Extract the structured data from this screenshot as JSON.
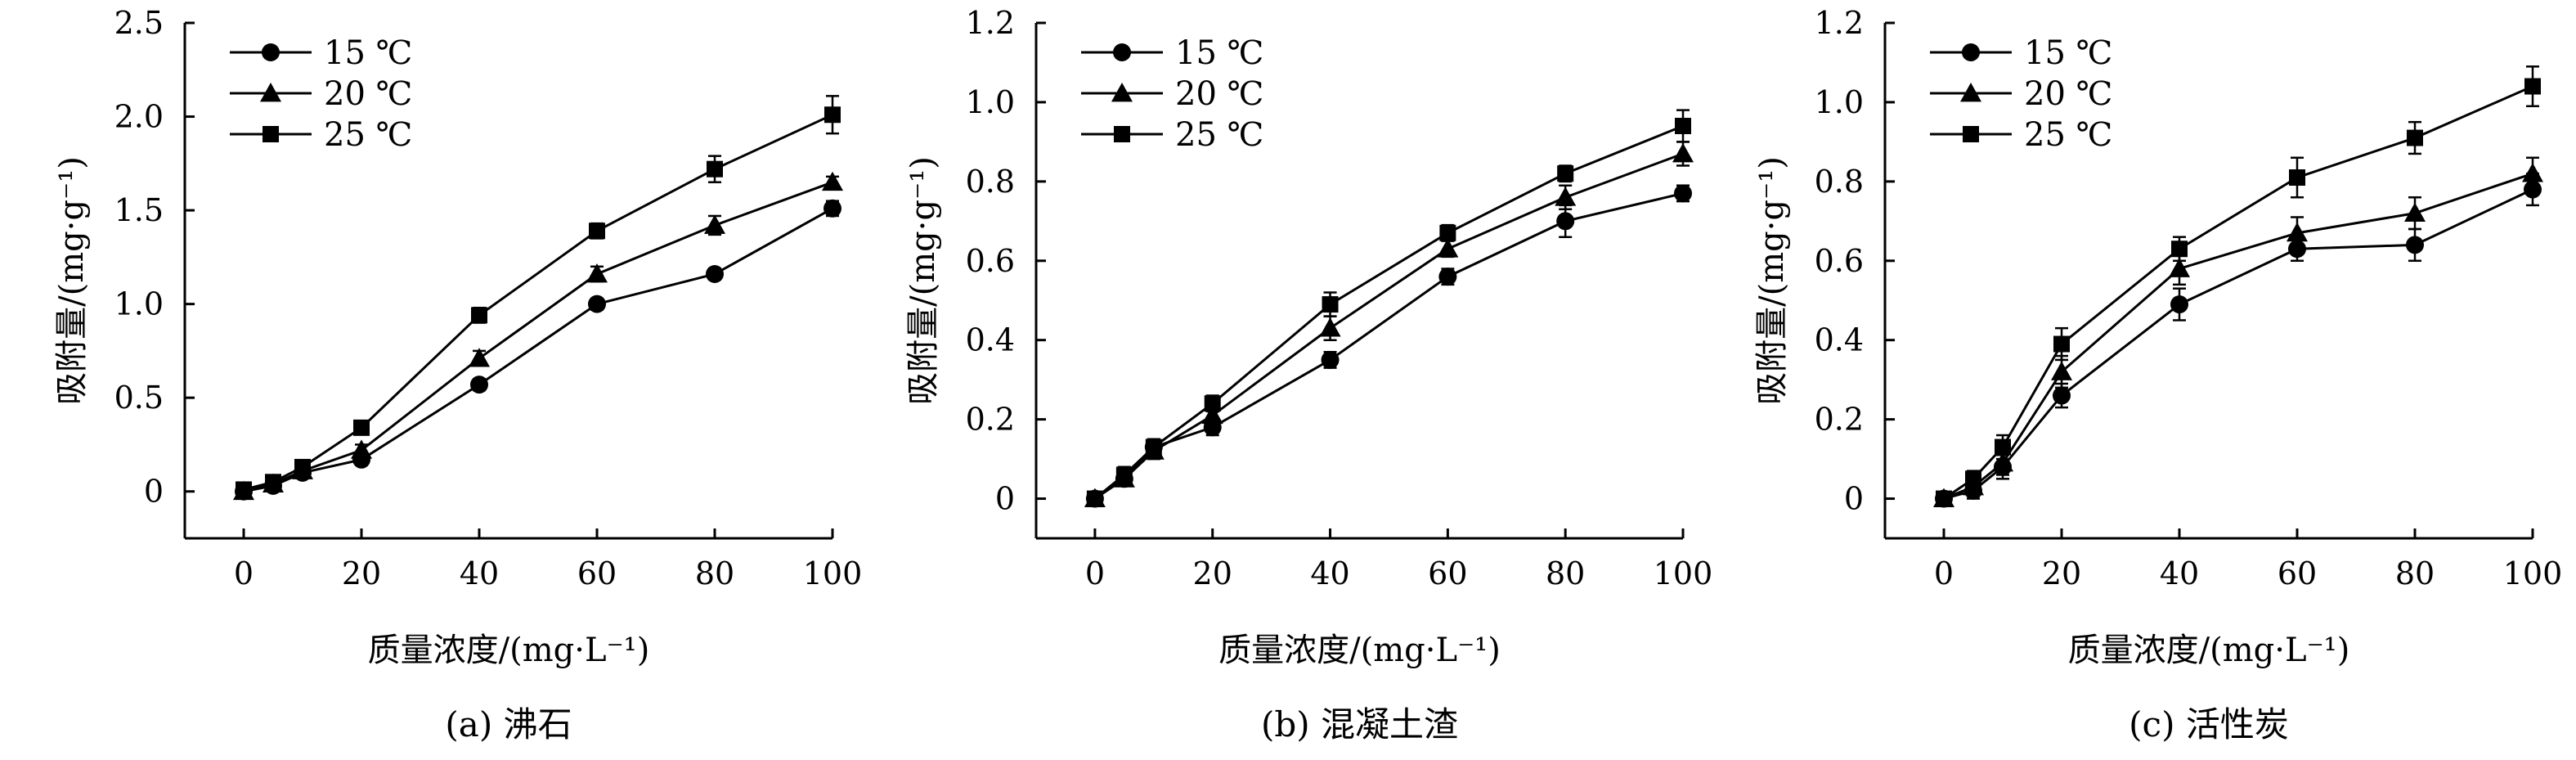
{
  "chart_data": [
    {
      "type": "line",
      "caption": "(a) 沸石",
      "xlabel": "质量浓度/(mg·L⁻¹)",
      "ylabel": "吸附量/(mg·g⁻¹)",
      "x": [
        0,
        5,
        10,
        20,
        40,
        60,
        80,
        100
      ],
      "xticks": [
        "0",
        "20",
        "40",
        "60",
        "80",
        "100"
      ],
      "yticks": [
        "0",
        "0.5",
        "1.0",
        "1.5",
        "2.0",
        "2.5"
      ],
      "xlim": [
        -10,
        100
      ],
      "ylim": [
        -0.25,
        2.5
      ],
      "legend_position": "top-left",
      "series": [
        {
          "name": "15 ℃",
          "marker": "circle",
          "values": [
            0,
            0.03,
            0.1,
            0.17,
            0.57,
            1.0,
            1.16,
            1.51
          ],
          "errors": [
            0.02,
            0.02,
            0.03,
            0.03,
            0.03,
            0.03,
            0.03,
            0.04
          ]
        },
        {
          "name": "20 ℃",
          "marker": "triangle",
          "values": [
            0,
            0.04,
            0.11,
            0.22,
            0.71,
            1.16,
            1.42,
            1.65
          ],
          "errors": [
            0.02,
            0.02,
            0.03,
            0.03,
            0.04,
            0.04,
            0.05,
            0.03
          ]
        },
        {
          "name": "25 ℃",
          "marker": "square",
          "values": [
            0.01,
            0.05,
            0.13,
            0.34,
            0.94,
            1.39,
            1.72,
            2.01
          ],
          "errors": [
            0.02,
            0.02,
            0.03,
            0.03,
            0.04,
            0.04,
            0.07,
            0.1
          ]
        }
      ]
    },
    {
      "type": "line",
      "caption": "(b) 混凝土渣",
      "xlabel": "质量浓度/(mg·L⁻¹)",
      "ylabel": "吸附量/(mg·g⁻¹)",
      "x": [
        0,
        5,
        10,
        20,
        40,
        60,
        80,
        100
      ],
      "xticks": [
        "0",
        "20",
        "40",
        "60",
        "80",
        "100"
      ],
      "yticks": [
        "0",
        "0.2",
        "0.4",
        "0.6",
        "0.8",
        "1.0",
        "1.2"
      ],
      "xlim": [
        -10,
        100
      ],
      "ylim": [
        -0.1,
        1.2
      ],
      "legend_position": "top-left",
      "series": [
        {
          "name": "15 ℃",
          "marker": "circle",
          "values": [
            0,
            0.05,
            0.13,
            0.18,
            0.35,
            0.56,
            0.7,
            0.77
          ],
          "errors": [
            0.01,
            0.01,
            0.02,
            0.02,
            0.02,
            0.02,
            0.04,
            0.02
          ]
        },
        {
          "name": "20 ℃",
          "marker": "triangle",
          "values": [
            0,
            0.05,
            0.12,
            0.21,
            0.43,
            0.63,
            0.76,
            0.87
          ],
          "errors": [
            0.01,
            0.01,
            0.02,
            0.02,
            0.03,
            0.02,
            0.03,
            0.03
          ]
        },
        {
          "name": "25 ℃",
          "marker": "square",
          "values": [
            0,
            0.06,
            0.13,
            0.24,
            0.49,
            0.67,
            0.82,
            0.94
          ],
          "errors": [
            0.01,
            0.02,
            0.02,
            0.02,
            0.03,
            0.02,
            0.02,
            0.04
          ]
        }
      ]
    },
    {
      "type": "line",
      "caption": "(c) 活性炭",
      "xlabel": "质量浓度/(mg·L⁻¹)",
      "ylabel": "吸附量/(mg·g⁻¹)",
      "x": [
        0,
        5,
        10,
        20,
        40,
        60,
        80,
        100
      ],
      "xticks": [
        "0",
        "20",
        "40",
        "60",
        "80",
        "100"
      ],
      "yticks": [
        "0",
        "0.2",
        "0.4",
        "0.6",
        "0.8",
        "1.0",
        "1.2"
      ],
      "xlim": [
        -10,
        100
      ],
      "ylim": [
        -0.1,
        1.2
      ],
      "legend_position": "top-left",
      "series": [
        {
          "name": "15 ℃",
          "marker": "circle",
          "values": [
            0,
            0.02,
            0.08,
            0.26,
            0.49,
            0.63,
            0.64,
            0.78
          ],
          "errors": [
            0.01,
            0.02,
            0.03,
            0.03,
            0.04,
            0.03,
            0.04,
            0.04
          ]
        },
        {
          "name": "20 ℃",
          "marker": "triangle",
          "values": [
            0,
            0.03,
            0.09,
            0.32,
            0.58,
            0.67,
            0.72,
            0.82
          ],
          "errors": [
            0.01,
            0.02,
            0.03,
            0.04,
            0.04,
            0.04,
            0.04,
            0.04
          ]
        },
        {
          "name": "25 ℃",
          "marker": "square",
          "values": [
            0,
            0.05,
            0.13,
            0.39,
            0.63,
            0.81,
            0.91,
            1.04
          ],
          "errors": [
            0.01,
            0.02,
            0.03,
            0.04,
            0.03,
            0.05,
            0.04,
            0.05
          ]
        }
      ]
    }
  ]
}
